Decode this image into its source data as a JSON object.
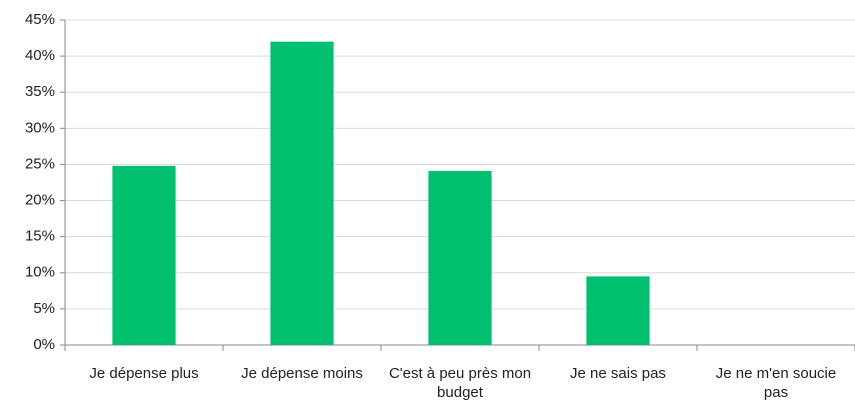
{
  "chart_data": {
    "type": "bar",
    "categories": [
      "Je dépense plus",
      "Je dépense moins",
      "C'est à peu près mon budget",
      "Je ne sais pas",
      "Je ne m'en soucie pas"
    ],
    "values": [
      24.8,
      42,
      24.1,
      9.5,
      0
    ],
    "color": "#00c070",
    "ylim": [
      0,
      45
    ],
    "yticks": [
      {
        "value": 0,
        "label": "0%"
      },
      {
        "value": 5,
        "label": "5%"
      },
      {
        "value": 10,
        "label": "10%"
      },
      {
        "value": 15,
        "label": "15%"
      },
      {
        "value": 20,
        "label": "20%"
      },
      {
        "value": 25,
        "label": "25%"
      },
      {
        "value": 30,
        "label": "30%"
      },
      {
        "value": 35,
        "label": "35%"
      },
      {
        "value": 40,
        "label": "40%"
      },
      {
        "value": 45,
        "label": "45%"
      }
    ],
    "grid": true
  }
}
